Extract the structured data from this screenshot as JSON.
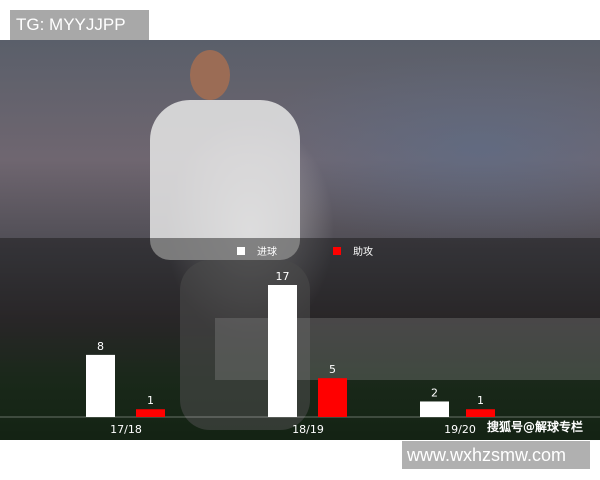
{
  "watermarks": {
    "top_left": "TG: MYYJJPP",
    "bottom_right": "www.wxhzsmw.com",
    "source": "搜狐号@解球专栏"
  },
  "chart_data": {
    "type": "bar",
    "title": "",
    "xlabel": "",
    "ylabel": "",
    "categories": [
      "17/18",
      "18/19",
      "19/20"
    ],
    "series": [
      {
        "name": "进球",
        "values": [
          8,
          17,
          2
        ],
        "color": "#ffffff"
      },
      {
        "name": "助攻",
        "values": [
          1,
          5,
          1
        ],
        "color": "#ff0000"
      }
    ],
    "ylim": [
      0,
      17
    ],
    "grid": false,
    "legend_position": "top-center",
    "data_labels": true
  }
}
